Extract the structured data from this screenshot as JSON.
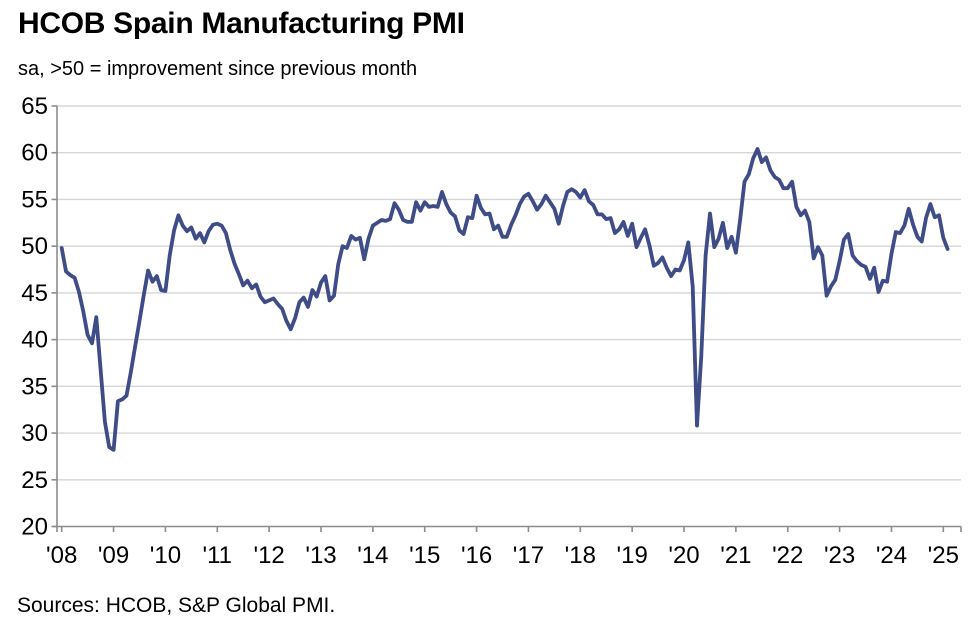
{
  "header": {
    "title": "HCOB Spain Manufacturing PMI",
    "subtitle": "sa, >50 = improvement since previous month"
  },
  "footer": {
    "sources": "Sources: HCOB, S&P Global PMI."
  },
  "colors": {
    "line": "#3E4C87",
    "grid": "#D6D6D6",
    "axis": "#8C8C8C",
    "text": "#000000",
    "background": "#FFFFFF"
  },
  "chart_data": {
    "type": "line",
    "title": "HCOB Spain Manufacturing PMI",
    "subtitle": "sa, >50 = improvement since previous month",
    "source_note": "Sources: HCOB, S&P Global PMI.",
    "frequency": "monthly",
    "x_start": "2008-01",
    "x_end": "2025-02",
    "x_tick_labels": [
      "'08",
      "'09",
      "'10",
      "'11",
      "'12",
      "'13",
      "'14",
      "'15",
      "'16",
      "'17",
      "'18",
      "'19",
      "'20",
      "'21",
      "'22",
      "'23",
      "'24",
      "'25"
    ],
    "y_ticks": [
      20,
      25,
      30,
      35,
      40,
      45,
      50,
      55,
      60,
      65
    ],
    "ylim": [
      20,
      65
    ],
    "grid": "horizontal-only",
    "legend": "none",
    "series": [
      {
        "name": "Spain Manufacturing PMI (sa)",
        "values": [
          49.8,
          47.3,
          46.9,
          46.6,
          45.1,
          43.0,
          40.5,
          39.6,
          42.4,
          36.8,
          31.2,
          28.5,
          28.2,
          33.4,
          33.6,
          34.0,
          36.5,
          39.3,
          42.0,
          44.8,
          47.4,
          46.2,
          46.8,
          45.3,
          45.2,
          49.0,
          51.7,
          53.3,
          52.2,
          51.6,
          52.0,
          50.8,
          51.4,
          50.4,
          51.6,
          52.3,
          52.4,
          52.2,
          51.4,
          49.6,
          48.1,
          47.0,
          45.8,
          46.3,
          45.5,
          45.9,
          44.6,
          44.0,
          44.2,
          44.4,
          43.8,
          43.3,
          42.0,
          41.1,
          42.3,
          44.0,
          44.5,
          43.5,
          45.3,
          44.6,
          46.1,
          46.8,
          44.2,
          44.7,
          48.1,
          50.0,
          49.8,
          51.1,
          50.7,
          50.9,
          48.6,
          50.8,
          52.2,
          52.5,
          52.8,
          52.7,
          52.9,
          54.6,
          53.9,
          52.8,
          52.6,
          52.6,
          54.7,
          53.8,
          54.7,
          54.2,
          54.3,
          54.2,
          55.8,
          54.5,
          53.6,
          53.2,
          51.7,
          51.3,
          53.1,
          53.0,
          55.4,
          54.1,
          53.4,
          53.5,
          51.8,
          52.2,
          51.0,
          51.0,
          52.3,
          53.3,
          54.5,
          55.3,
          55.6,
          54.8,
          53.9,
          54.5,
          55.4,
          54.7,
          54.0,
          52.4,
          54.3,
          55.8,
          56.1,
          55.8,
          55.2,
          56.0,
          54.8,
          54.4,
          53.4,
          53.4,
          52.9,
          53.0,
          51.4,
          51.8,
          52.6,
          51.1,
          52.4,
          49.9,
          50.9,
          51.8,
          50.1,
          47.9,
          48.2,
          48.8,
          47.7,
          46.8,
          47.5,
          47.4,
          48.5,
          50.4,
          45.7,
          30.8,
          38.3,
          49.0,
          53.5,
          49.9,
          50.8,
          52.5,
          49.8,
          51.0,
          49.3,
          52.9,
          56.9,
          57.7,
          59.4,
          60.4,
          59.0,
          59.5,
          58.1,
          57.4,
          57.1,
          56.2,
          56.2,
          56.9,
          54.2,
          53.3,
          53.8,
          52.6,
          48.7,
          49.9,
          49.0,
          44.7,
          45.7,
          46.4,
          48.4,
          50.7,
          51.3,
          49.0,
          48.4,
          48.0,
          47.8,
          46.5,
          47.7,
          45.1,
          46.3,
          46.2,
          49.2,
          51.5,
          51.4,
          52.2,
          54.0,
          52.3,
          51.0,
          50.5,
          53.0,
          54.5,
          53.1,
          53.3,
          50.9,
          49.7
        ]
      }
    ]
  }
}
